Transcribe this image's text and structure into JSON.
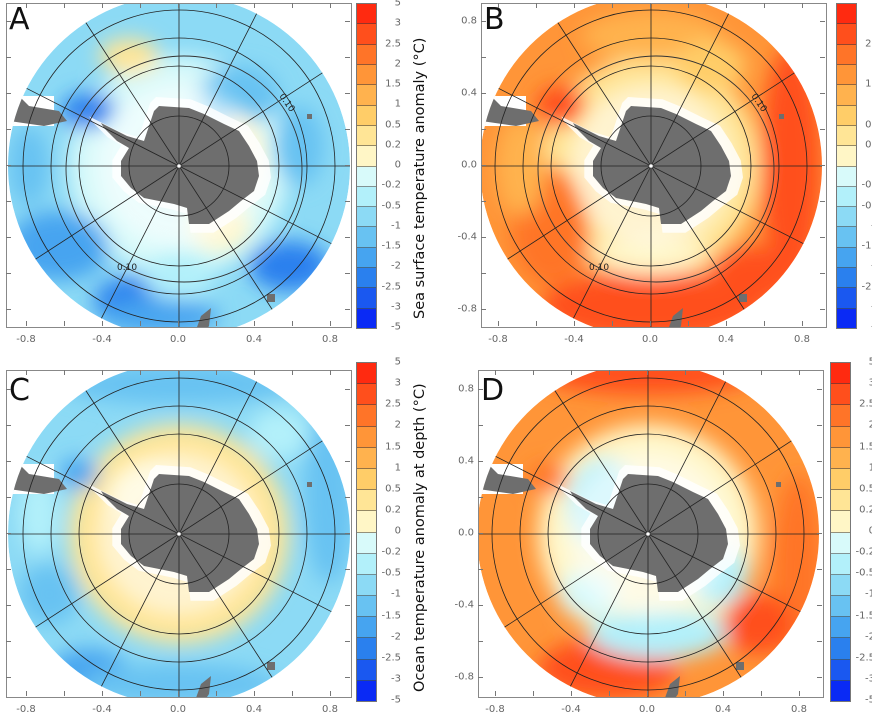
{
  "panels": [
    {
      "id": "A",
      "label": "A",
      "contour_labels": [
        "0.10",
        "0.10"
      ],
      "field": "sst-cool"
    },
    {
      "id": "B",
      "label": "B",
      "contour_labels": [
        "0.10",
        "0.10"
      ],
      "field": "sst-warm"
    },
    {
      "id": "C",
      "label": "C",
      "contour_labels": [],
      "field": "depth-cool"
    },
    {
      "id": "D",
      "label": "D",
      "contour_labels": [],
      "field": "depth-warm"
    }
  ],
  "colorbar_titles": {
    "top": "Sea surface  temperature anomaly (°C)",
    "bottom": "Ocean temperature anomaly at depth (°C)"
  },
  "colorbar_levels": [
    "5",
    "3",
    "2.5",
    "2",
    "1.5",
    "1",
    "0.5",
    "0.2",
    "0",
    "-0.2",
    "-0.5",
    "-1",
    "-1.5",
    "-2",
    "-2.5",
    "-3",
    "-5"
  ],
  "colorbar_colors": [
    "#ff2a10",
    "#ff4f1c",
    "#ff7428",
    "#ff9538",
    "#ffb24e",
    "#ffcd68",
    "#ffe596",
    "#fff6c6",
    "#d8fafa",
    "#b2f0fa",
    "#8cdaf5",
    "#68c2f2",
    "#46a4f0",
    "#2a80ee",
    "#1a58f0",
    "#0a2af5"
  ],
  "x_ticks": [
    "-0.8",
    "-0.4",
    "0.0",
    "0.4",
    "0.8"
  ],
  "y_ticks": [
    "0.8",
    "0.4",
    "0.0",
    "-0.4",
    "-0.8"
  ],
  "colors": {
    "land": "#6e6e6e",
    "grid": "#222222",
    "frame": "#888888"
  }
}
